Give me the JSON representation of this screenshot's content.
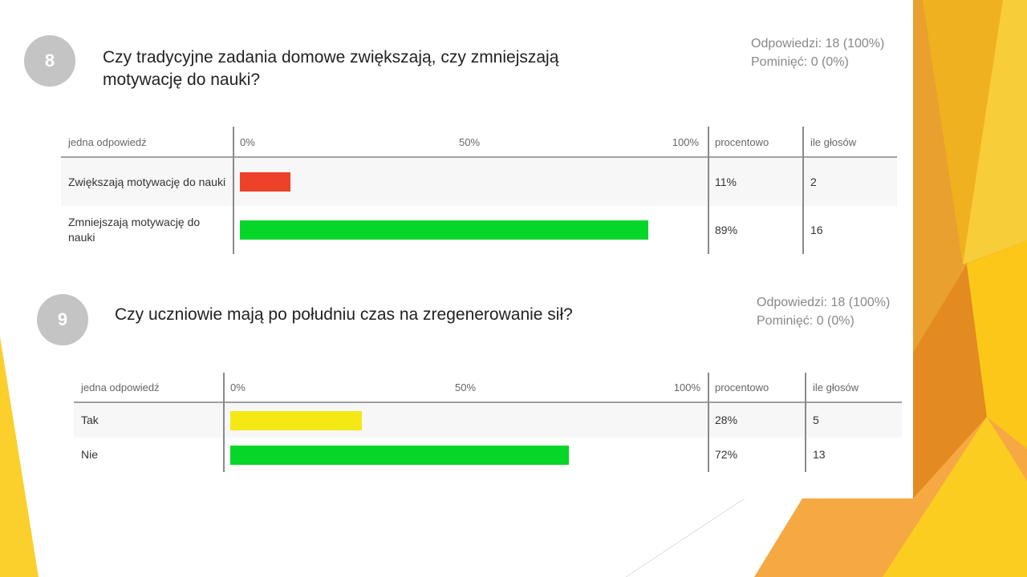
{
  "questions": [
    {
      "number": 8,
      "title": "Czy tradycyjne zadania domowe zwiększają, czy zmniejszają motywację do nauki?",
      "answered": "Odpowiedzi: 18 (100%)",
      "skipped": "Pominięć: 0 (0%)",
      "header": {
        "label": "jedna odpowiedź",
        "scale": [
          {
            "value": 0,
            "label": "0%"
          },
          {
            "value": 50,
            "label": "50%"
          },
          {
            "value": 100,
            "label": "100%"
          }
        ],
        "percent": "procentowo",
        "votes": "ile głosów"
      },
      "rows": [
        {
          "label": "Zwiększają motywację do nauki",
          "percent": {
            "value": 11,
            "label": "11%"
          },
          "votes": 2,
          "color": "#ee4129"
        },
        {
          "label": "Zmniejszają motywację do nauki",
          "percent": {
            "value": 89,
            "label": "89%"
          },
          "votes": 16,
          "color": "#05d628"
        }
      ]
    },
    {
      "number": 9,
      "title": "Czy uczniowie mają po południu czas na zregenerowanie sił?",
      "answered": "Odpowiedzi: 18 (100%)",
      "skipped": "Pominięć: 0 (0%)",
      "header": {
        "label": "jedna odpowiedź",
        "scale": [
          {
            "value": 0,
            "label": "0%"
          },
          {
            "value": 50,
            "label": "50%"
          },
          {
            "value": 100,
            "label": "100%"
          }
        ],
        "percent": "procentowo",
        "votes": "ile głosów"
      },
      "rows": [
        {
          "label": "Tak",
          "percent": {
            "value": 28,
            "label": "28%"
          },
          "votes": 5,
          "color": "#f4e915"
        },
        {
          "label": "Nie",
          "percent": {
            "value": 72,
            "label": "72%"
          },
          "votes": 13,
          "color": "#05d628"
        }
      ]
    }
  ]
}
